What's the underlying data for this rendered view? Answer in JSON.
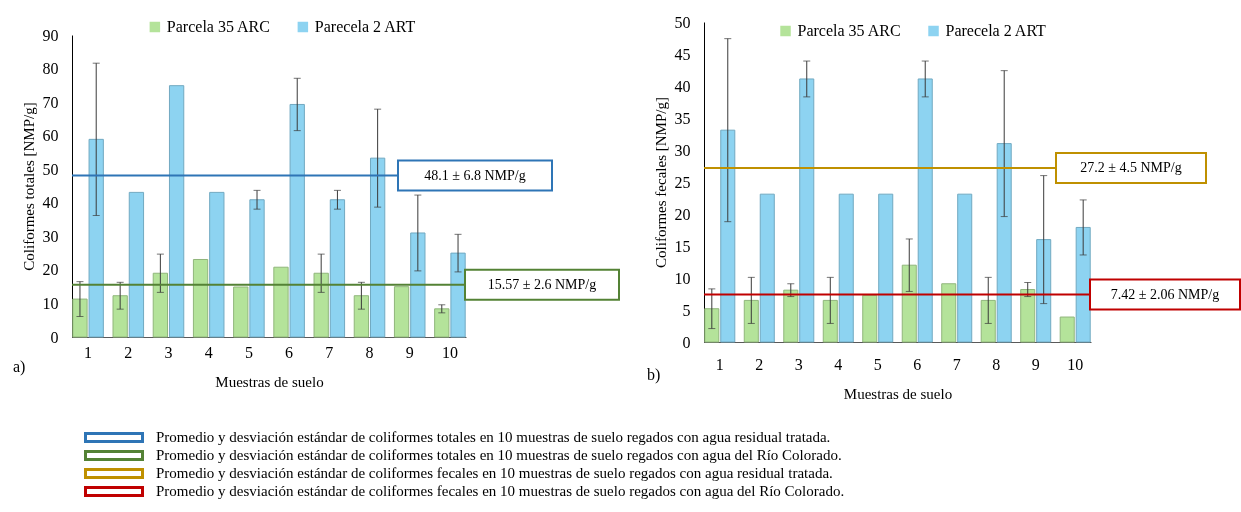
{
  "chart_data": [
    {
      "type": "bar",
      "xlabel": "Muestras de suelo",
      "ylabel": "Coliformes totales [NMP/g]",
      "categories": [
        "1",
        "2",
        "3",
        "4",
        "5",
        "6",
        "7",
        "8",
        "9",
        "10"
      ],
      "series": [
        {
          "name": "Parcela 35 ARC",
          "color": "#b4e39a",
          "values": [
            11.3,
            12.3,
            19,
            23.1,
            14.9,
            20.8,
            19,
            12.3,
            15,
            8.4
          ],
          "errors": [
            5.2,
            4,
            5.7,
            null,
            null,
            null,
            5.7,
            4,
            null,
            1.2
          ]
        },
        {
          "name": "Parecela 2 ART",
          "color": "#8dd3f1",
          "values": [
            58.9,
            43.1,
            74.9,
            43.1,
            40.9,
            69.3,
            40.9,
            53.3,
            31,
            25
          ],
          "errors": [
            22.7,
            null,
            null,
            null,
            2.8,
            7.8,
            2.8,
            14.6,
            11.3,
            5.6
          ]
        }
      ],
      "ylim": [
        0,
        90
      ],
      "yticks": [
        0,
        10,
        20,
        30,
        40,
        50,
        60,
        70,
        80,
        90
      ],
      "legend": "top",
      "ref_lines": [
        {
          "axis": "y",
          "value": 48.1,
          "label": "48.1 ± 6.8 NMP/g",
          "color": "#2e75b6"
        },
        {
          "axis": "y",
          "value": 15.57,
          "label": "15.57 ± 2.6 NMP/g",
          "color": "#548235"
        }
      ],
      "annotations": [
        "a)",
        "Promedio y desviación estándar de coliformes totales en 10 muestras de suelo regados con agua residual tratada.",
        "Promedio y desviación estándar de coliformes totales en 10 muestras de suelo regados con agua del Río Colorado."
      ]
    },
    {
      "type": "bar",
      "xlabel": "Muestras de suelo",
      "ylabel": "Coliformes fecales [NMP/g]",
      "categories": [
        "1",
        "2",
        "3",
        "4",
        "5",
        "6",
        "7",
        "8",
        "9",
        "10"
      ],
      "series": [
        {
          "name": "Parcela 35 ARC",
          "color": "#b4e39a",
          "values": [
            5.2,
            6.5,
            8.1,
            6.5,
            7.3,
            12,
            9.1,
            6.5,
            8.2,
            3.9
          ],
          "errors": [
            3.1,
            3.6,
            1,
            3.6,
            null,
            4.1,
            null,
            3.6,
            1.1,
            null
          ]
        },
        {
          "name": "Parecela 2 ART",
          "color": "#8dd3f1",
          "values": [
            33.1,
            23.1,
            41.1,
            23.1,
            23.1,
            41.1,
            23.1,
            31,
            16,
            17.9
          ],
          "errors": [
            14.3,
            null,
            2.8,
            null,
            null,
            2.8,
            null,
            11.4,
            10,
            4.3
          ]
        }
      ],
      "ylim": [
        0,
        50
      ],
      "yticks": [
        0,
        5,
        10,
        15,
        20,
        25,
        30,
        35,
        40,
        45,
        50
      ],
      "legend": "top",
      "ref_lines": [
        {
          "axis": "y",
          "value": 27.2,
          "label": "27.2 ± 4.5 NMP/g",
          "color": "#bf9000"
        },
        {
          "axis": "y",
          "value": 7.42,
          "label": "7.42 ± 2.06 NMP/g",
          "color": "#c00000"
        }
      ],
      "annotations": [
        "b)",
        "Promedio y desviación estándar de coliformes fecales en 10 muestras de suelo regados con agua residual tratada.",
        "Promedio y desviación estándar de coliformes fecales en 10 muestras de suelo regados con agua del Río Colorado."
      ]
    }
  ]
}
